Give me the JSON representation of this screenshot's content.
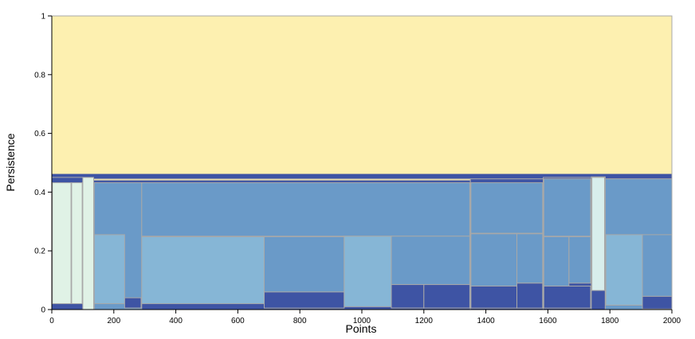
{
  "chart_data": {
    "type": "treemap",
    "title": "",
    "xlabel": "Points",
    "ylabel": "Persistence",
    "xlim": [
      0,
      2000
    ],
    "ylim": [
      0,
      1
    ],
    "xticks": [
      0,
      200,
      400,
      600,
      800,
      1000,
      1200,
      1400,
      1600,
      1800,
      2000
    ],
    "yticks": [
      0,
      0.2,
      0.4,
      0.6,
      0.8,
      1
    ],
    "ytick_labels": [
      "0",
      "0.2",
      "0.4",
      "0.6",
      "0.8",
      "1"
    ],
    "grid": false,
    "colors": {
      "root": "#fdf0b0",
      "dark": "#3e54a4",
      "mid": "#6a9ac8",
      "light": "#86b6d6",
      "pale": "#e0f2e6",
      "paleblue": "#d8eeec",
      "border": "#a8a8a8"
    },
    "rects": [
      {
        "x0": 0,
        "x1": 2000,
        "y0": 0,
        "y1": 1,
        "fill": "root"
      },
      {
        "x0": 0,
        "x1": 2000,
        "y0": 0.445,
        "y1": 0.462,
        "fill": "dark"
      },
      {
        "x0": 0,
        "x1": 100,
        "y0": 0,
        "y1": 0.45,
        "fill": "dark"
      },
      {
        "x0": 2,
        "x1": 62,
        "y0": 0.02,
        "y1": 0.432,
        "fill": "pale"
      },
      {
        "x0": 64,
        "x1": 98,
        "y0": 0.02,
        "y1": 0.432,
        "fill": "pale"
      },
      {
        "x0": 100,
        "x1": 135,
        "y0": 0,
        "y1": 0.45,
        "fill": "pale"
      },
      {
        "x0": 135,
        "x1": 1350,
        "y0": 0,
        "y1": 0.44,
        "fill": "dark"
      },
      {
        "x0": 137,
        "x1": 290,
        "y0": 0,
        "y1": 0.432,
        "fill": "mid"
      },
      {
        "x0": 137,
        "x1": 235,
        "y0": 0.02,
        "y1": 0.255,
        "fill": "light"
      },
      {
        "x0": 235,
        "x1": 288,
        "y0": 0.005,
        "y1": 0.04,
        "fill": "dark"
      },
      {
        "x0": 290,
        "x1": 1348,
        "y0": 0.25,
        "y1": 0.432,
        "fill": "mid"
      },
      {
        "x0": 290,
        "x1": 685,
        "y0": 0.02,
        "y1": 0.248,
        "fill": "light"
      },
      {
        "x0": 685,
        "x1": 943,
        "y0": 0.06,
        "y1": 0.248,
        "fill": "mid"
      },
      {
        "x0": 685,
        "x1": 943,
        "y0": 0.005,
        "y1": 0.06,
        "fill": "dark"
      },
      {
        "x0": 943,
        "x1": 1095,
        "y0": 0.01,
        "y1": 0.25,
        "fill": "light"
      },
      {
        "x0": 1095,
        "x1": 1348,
        "y0": 0.085,
        "y1": 0.25,
        "fill": "mid"
      },
      {
        "x0": 1095,
        "x1": 1200,
        "y0": 0.005,
        "y1": 0.085,
        "fill": "dark"
      },
      {
        "x0": 1200,
        "x1": 1348,
        "y0": 0.005,
        "y1": 0.085,
        "fill": "dark"
      },
      {
        "x0": 1350,
        "x1": 1585,
        "y0": 0,
        "y1": 0.445,
        "fill": "dark"
      },
      {
        "x0": 1352,
        "x1": 1583,
        "y0": 0.26,
        "y1": 0.432,
        "fill": "mid"
      },
      {
        "x0": 1352,
        "x1": 1500,
        "y0": 0.08,
        "y1": 0.258,
        "fill": "mid"
      },
      {
        "x0": 1500,
        "x1": 1583,
        "y0": 0.09,
        "y1": 0.258,
        "fill": "mid"
      },
      {
        "x0": 1352,
        "x1": 1500,
        "y0": 0.005,
        "y1": 0.08,
        "fill": "dark"
      },
      {
        "x0": 1500,
        "x1": 1583,
        "y0": 0.005,
        "y1": 0.09,
        "fill": "dark"
      },
      {
        "x0": 1585,
        "x1": 1740,
        "y0": 0,
        "y1": 0.45,
        "fill": "dark"
      },
      {
        "x0": 1587,
        "x1": 1738,
        "y0": 0.25,
        "y1": 0.445,
        "fill": "mid"
      },
      {
        "x0": 1587,
        "x1": 1668,
        "y0": 0.08,
        "y1": 0.248,
        "fill": "mid"
      },
      {
        "x0": 1668,
        "x1": 1738,
        "y0": 0.09,
        "y1": 0.248,
        "fill": "mid"
      },
      {
        "x0": 1587,
        "x1": 1738,
        "y0": 0.005,
        "y1": 0.08,
        "fill": "dark"
      },
      {
        "x0": 1740,
        "x1": 1785,
        "y0": 0,
        "y1": 0.452,
        "fill": "dark"
      },
      {
        "x0": 1742,
        "x1": 1783,
        "y0": 0.065,
        "y1": 0.45,
        "fill": "paleblue"
      },
      {
        "x0": 1785,
        "x1": 2000,
        "y0": 0,
        "y1": 0.445,
        "fill": "mid"
      },
      {
        "x0": 1787,
        "x1": 1905,
        "y0": 0.015,
        "y1": 0.255,
        "fill": "light"
      },
      {
        "x0": 1905,
        "x1": 2000,
        "y0": 0.045,
        "y1": 0.255,
        "fill": "mid"
      },
      {
        "x0": 1905,
        "x1": 2000,
        "y0": 0.002,
        "y1": 0.045,
        "fill": "dark"
      }
    ]
  }
}
